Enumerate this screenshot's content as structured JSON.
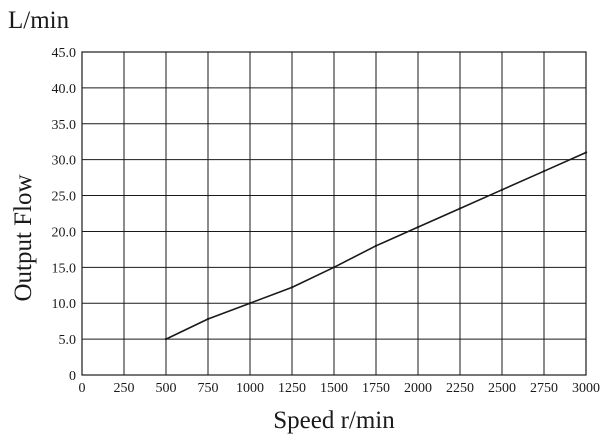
{
  "chart_data": {
    "type": "line",
    "unit_label": "L/min",
    "xlabel": "Speed r/min",
    "ylabel": "Output Flow",
    "xlim": [
      0,
      3000
    ],
    "ylim": [
      0,
      45
    ],
    "grid": true,
    "x_ticks": [
      "0",
      "250",
      "500",
      "750",
      "1000",
      "1250",
      "1500",
      "1750",
      "2000",
      "2250",
      "2500",
      "2750",
      "3000"
    ],
    "y_ticks": [
      "0",
      "5.0",
      "10.0",
      "15.0",
      "20.0",
      "25.0",
      "30.0",
      "35.0",
      "40.0",
      "45.0"
    ],
    "series": [
      {
        "x": [
          500,
          750,
          1000,
          1250,
          1500,
          1750,
          2000,
          2250,
          2500,
          2750,
          3000
        ],
        "y": [
          5.0,
          7.8,
          10.0,
          12.2,
          15.0,
          18.0,
          20.6,
          23.2,
          25.8,
          28.4,
          31.0
        ]
      }
    ]
  }
}
